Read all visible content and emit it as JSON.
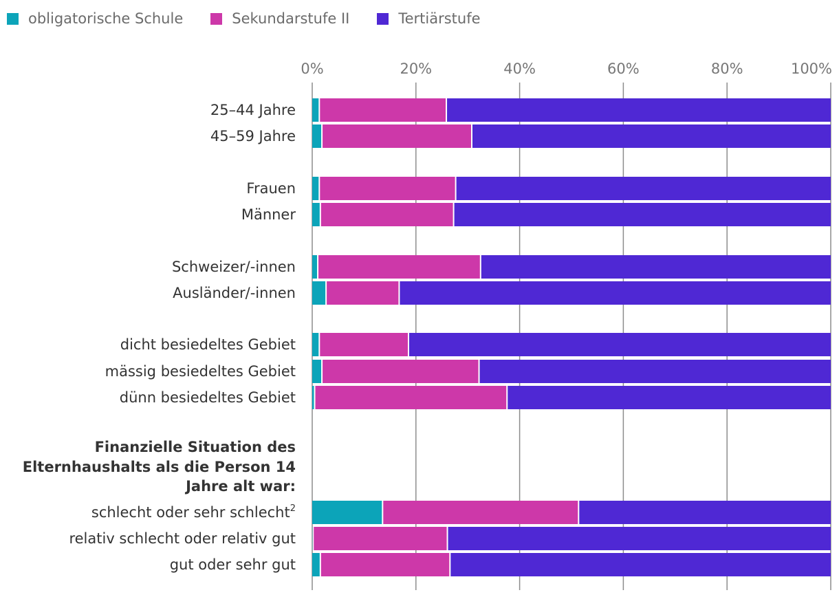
{
  "legend": [
    {
      "label": "obligatorische Schule",
      "color": "#0ca4b9"
    },
    {
      "label": "Sekundarstufe II",
      "color": "#cd38a9"
    },
    {
      "label": "Tertiärstufe",
      "color": "#4f28d4"
    }
  ],
  "chart_data": {
    "type": "bar",
    "orientation": "horizontal",
    "stacked": true,
    "x_ticks": [
      "0%",
      "20%",
      "40%",
      "60%",
      "80%",
      "100%"
    ],
    "xlim": [
      0,
      100
    ],
    "unit": "%",
    "group_heading": [
      "Finanzielle Situation des",
      "Elternhaushalts als die Person 14",
      "Jahre alt war:"
    ],
    "categories": [
      "25–44 Jahre",
      "45–59 Jahre",
      "Frauen",
      "Männer",
      "Schweizer/-innen",
      "Ausländer/-innen",
      "dicht besiedeltes Gebiet",
      "mässig besiedeltes Gebiet",
      "dünn besiedeltes Gebiet",
      "schlecht oder sehr schlecht",
      "relativ schlecht oder relativ gut",
      "gut oder sehr gut"
    ],
    "footnotes": {
      "schlecht oder sehr schlecht": "2"
    },
    "series": [
      {
        "name": "obligatorische Schule",
        "values": [
          1.5,
          2.0,
          1.5,
          1.7,
          1.2,
          2.8,
          1.5,
          2.0,
          0.6,
          13.7,
          0.3,
          1.7
        ]
      },
      {
        "name": "Sekundarstufe II",
        "values": [
          24.5,
          28.9,
          26.3,
          25.7,
          31.4,
          14.1,
          17.2,
          30.3,
          37.1,
          37.8,
          25.9,
          25.0
        ]
      },
      {
        "name": "Tertiärstufe",
        "values": [
          74.0,
          69.1,
          72.2,
          72.6,
          67.4,
          83.1,
          81.3,
          67.7,
          62.3,
          48.5,
          73.8,
          73.3
        ]
      }
    ]
  }
}
